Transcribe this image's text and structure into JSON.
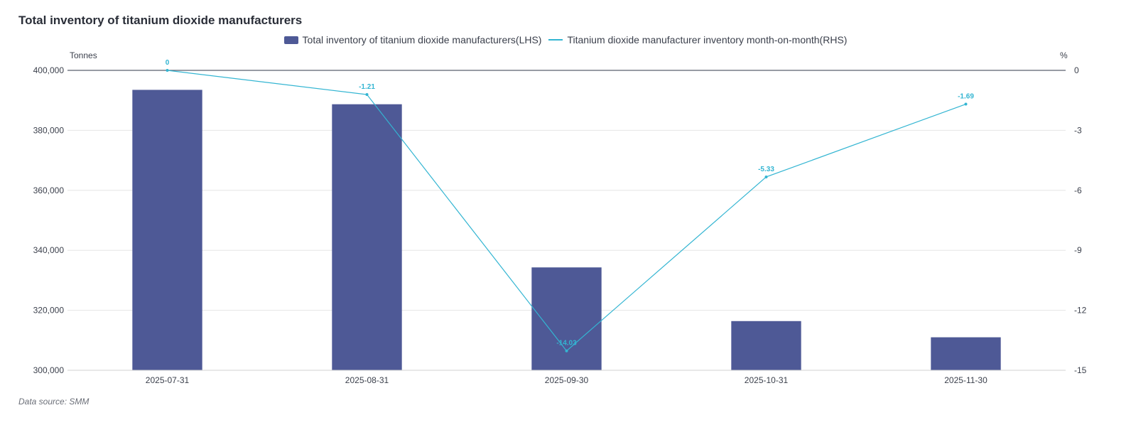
{
  "title": "Total inventory of titanium dioxide manufacturers",
  "source": "Data source:  SMM",
  "legend": {
    "bar": "Total inventory of titanium dioxide manufacturers(LHS)",
    "line": "Titanium dioxide manufacturer inventory month-on-month(RHS)"
  },
  "colors": {
    "bar": "#4e5996",
    "line": "#33b5d2",
    "grid": "#e6e6e6",
    "axis": "#5a5f6e"
  },
  "chart_data": {
    "type": "bar",
    "title": "Total inventory of titanium dioxide manufacturers",
    "categories": [
      "2025-07-31",
      "2025-08-31",
      "2025-09-30",
      "2025-10-31",
      "2025-11-30"
    ],
    "series": [
      {
        "name": "Total inventory of titanium dioxide manufacturers(LHS)",
        "type": "bar",
        "axis": "left",
        "values": [
          393500,
          388700,
          334300,
          316400,
          311000
        ]
      },
      {
        "name": "Titanium dioxide manufacturer inventory month-on-month(RHS)",
        "type": "line",
        "axis": "right",
        "values": [
          0,
          -1.21,
          -14.03,
          -5.33,
          -1.69
        ],
        "labels": [
          "0",
          "-1.21",
          "-14.03",
          "-5.33",
          "-1.69"
        ]
      }
    ],
    "y_left": {
      "unit": "Tonnes",
      "range": [
        300000,
        400000
      ],
      "ticks": [
        "400,000",
        "380,000",
        "360,000",
        "340,000",
        "320,000",
        "300,000"
      ],
      "tick_values": [
        400000,
        380000,
        360000,
        340000,
        320000,
        300000
      ]
    },
    "y_right": {
      "unit": "%",
      "range": [
        -15,
        0
      ],
      "ticks": [
        "0",
        "-3",
        "-6",
        "-9",
        "-12",
        "-15"
      ],
      "tick_values": [
        0,
        -3,
        -6,
        -9,
        -12,
        -15
      ]
    },
    "grid": true,
    "legend_position": "top-center"
  }
}
